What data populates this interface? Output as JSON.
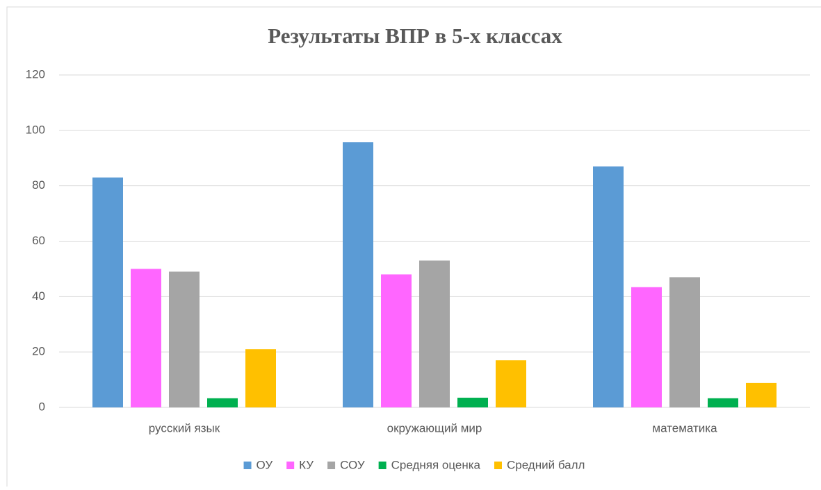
{
  "chart_data": {
    "type": "bar",
    "title": "Результаты  ВПР в 5-х классах",
    "categories": [
      "русский язык",
      "окружающий мир",
      "математика"
    ],
    "series": [
      {
        "name": "ОУ",
        "color": "#5b9bd5",
        "values": [
          83,
          95.7,
          87
        ]
      },
      {
        "name": "КУ",
        "color": "#ff66ff",
        "values": [
          50,
          48,
          43.4
        ]
      },
      {
        "name": "СОУ",
        "color": "#a5a5a5",
        "values": [
          49,
          53,
          47
        ]
      },
      {
        "name": "Средняя оценка",
        "color": "#00b050",
        "values": [
          3.3,
          3.5,
          3.3
        ]
      },
      {
        "name": "Средний балл",
        "color": "#ffc000",
        "values": [
          21,
          17,
          8.8
        ]
      }
    ],
    "ylim": [
      0,
      120
    ],
    "yticks": [
      0,
      20,
      40,
      60,
      80,
      100,
      120
    ],
    "grid": true,
    "legend": "bottom"
  }
}
